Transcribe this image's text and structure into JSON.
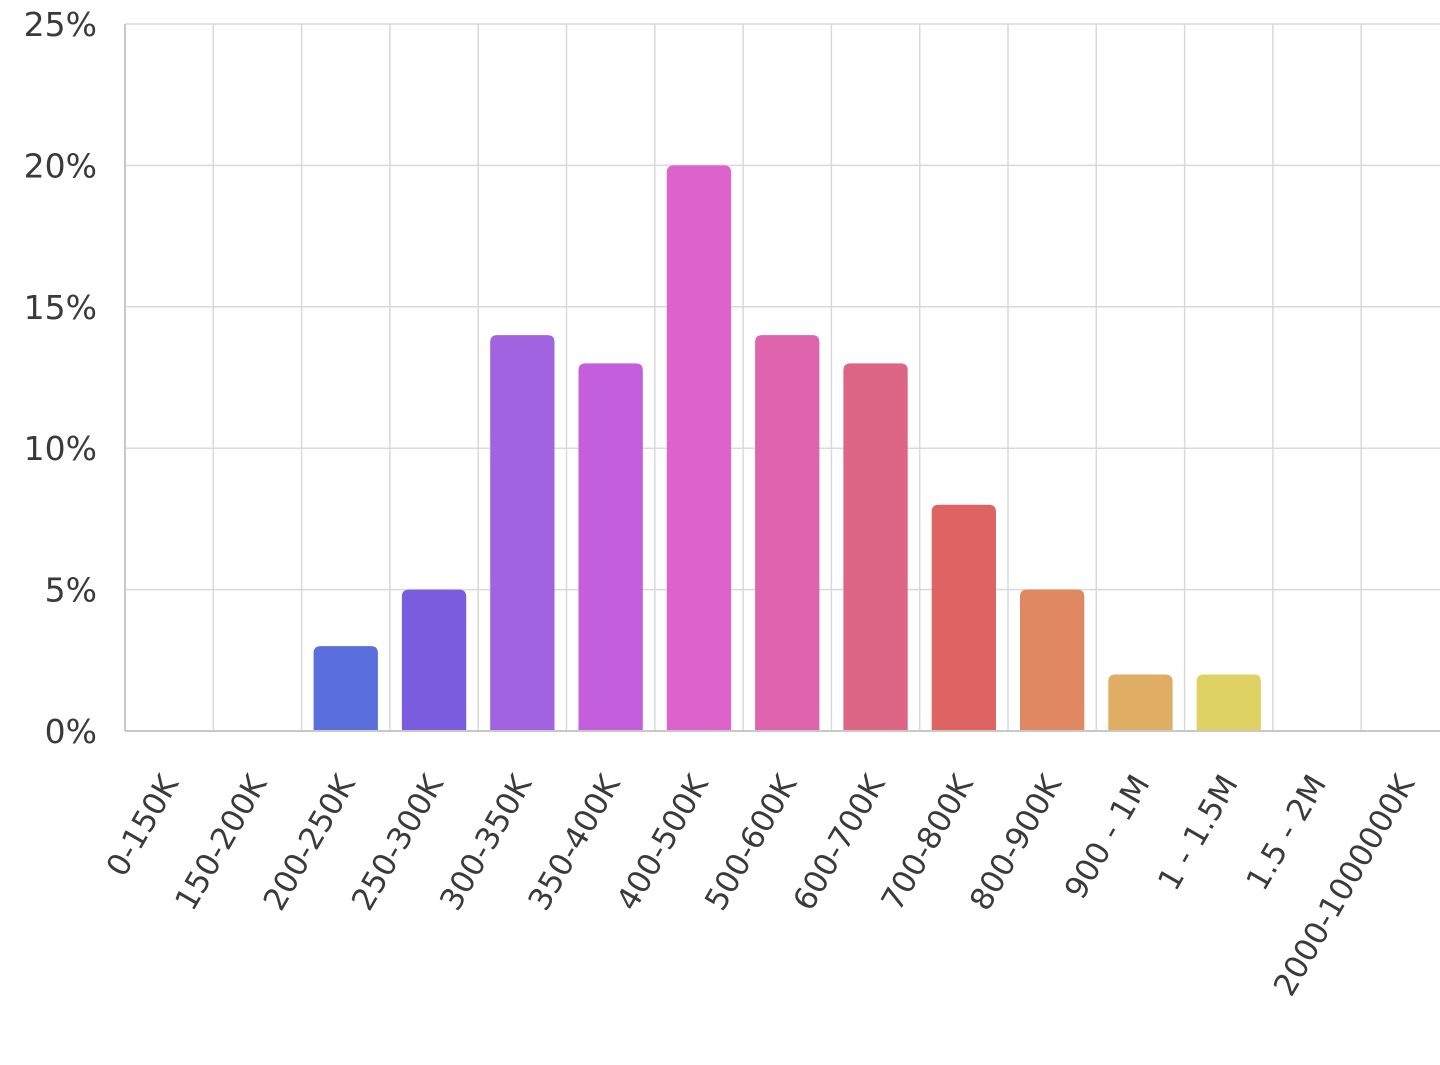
{
  "chart_data": {
    "type": "bar",
    "title": "",
    "xlabel": "",
    "ylabel": "",
    "categories": [
      "0-150K",
      "150-200K",
      "200-250K",
      "250-300K",
      "300-350K",
      "350-400K",
      "400-500K",
      "500-600K",
      "600-700K",
      "700-800K",
      "800-900K",
      "900 - 1M",
      "1 - 1.5M",
      "1.5 - 2M",
      "2000-1000000K"
    ],
    "values": [
      0,
      0,
      3,
      5,
      14,
      13,
      20,
      14,
      13,
      8,
      5,
      2,
      2,
      0,
      0
    ],
    "unit": "%",
    "ylim": [
      0,
      25
    ],
    "yticks": [
      0,
      5,
      10,
      15,
      20,
      25
    ],
    "ytick_labels": [
      "0%",
      "5%",
      "10%",
      "15%",
      "20%",
      "25%"
    ],
    "grid": true,
    "legend": "none",
    "bar_colors": [
      "#5a6fdc",
      "#5a6fdc",
      "#5a6fdc",
      "#7a5ddf",
      "#a163df",
      "#c35fdc",
      "#dd62cc",
      "#de64ad",
      "#dd6586",
      "#de6464",
      "#df8862",
      "#dfad64",
      "#dfd264",
      "#dfd264",
      "#dfd264"
    ]
  }
}
